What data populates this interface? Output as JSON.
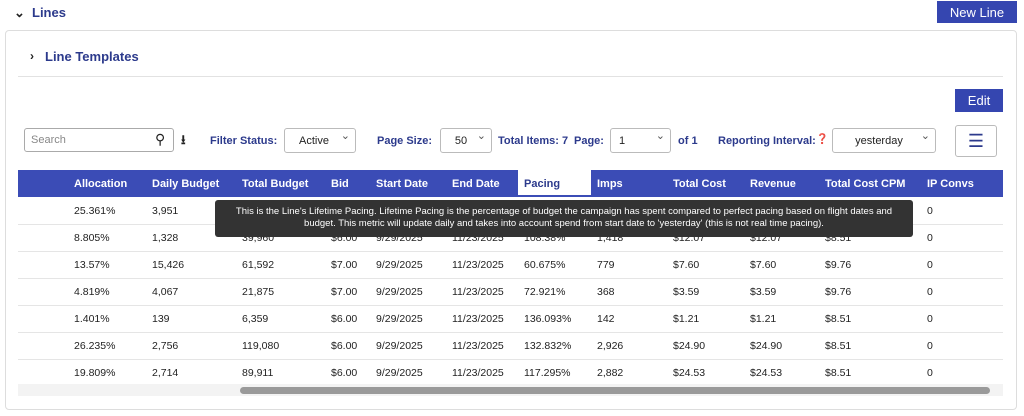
{
  "header": {
    "title": "Lines",
    "new_button": "New Line"
  },
  "templates": {
    "title": "Line Templates"
  },
  "edit_button": "Edit",
  "toolbar": {
    "search_placeholder": "Search",
    "filter_label": "Filter Status:",
    "filter_value": "Active",
    "page_size_label": "Page Size:",
    "page_size_value": "50",
    "total_items": "Total Items: 7",
    "page_label": "Page:",
    "page_value": "1",
    "page_of": "of 1",
    "interval_label": "Reporting Interval:",
    "interval_value": "yesterday"
  },
  "table": {
    "columns": [
      "Allocation",
      "Daily Budget",
      "Total Budget",
      "Bid",
      "Start Date",
      "End Date",
      "Pacing",
      "Imps",
      "Total Cost",
      "Revenue",
      "Total Cost CPM",
      "IP Convs"
    ],
    "rows": [
      [
        "25.361%",
        "3,951",
        null,
        null,
        null,
        null,
        null,
        null,
        null,
        null,
        null,
        "0"
      ],
      [
        "8.805%",
        "1,328",
        "39,960",
        "$6.00",
        "9/29/2025",
        "11/23/2025",
        "108.38%",
        "1,418",
        "$12.07",
        "$12.07",
        "$8.51",
        "0"
      ],
      [
        "13.57%",
        "15,426",
        "61,592",
        "$7.00",
        "9/29/2025",
        "11/23/2025",
        "60.675%",
        "779",
        "$7.60",
        "$7.60",
        "$9.76",
        "0"
      ],
      [
        "4.819%",
        "4,067",
        "21,875",
        "$7.00",
        "9/29/2025",
        "11/23/2025",
        "72.921%",
        "368",
        "$3.59",
        "$3.59",
        "$9.76",
        "0"
      ],
      [
        "1.401%",
        "139",
        "6,359",
        "$6.00",
        "9/29/2025",
        "11/23/2025",
        "136.093%",
        "142",
        "$1.21",
        "$1.21",
        "$8.51",
        "0"
      ],
      [
        "26.235%",
        "2,756",
        "119,080",
        "$6.00",
        "9/29/2025",
        "11/23/2025",
        "132.832%",
        "2,926",
        "$24.90",
        "$24.90",
        "$8.51",
        "0"
      ],
      [
        "19.809%",
        "2,714",
        "89,911",
        "$6.00",
        "9/29/2025",
        "11/23/2025",
        "117.295%",
        "2,882",
        "$24.53",
        "$24.53",
        "$8.51",
        "0"
      ]
    ]
  },
  "tooltip": "This is the Line's Lifetime Pacing. Lifetime Pacing is the percentage of budget the campaign has spent compared to perfect pacing based on flight dates and budget. This metric will update daily and takes into account spend from start date to 'yesterday' (this is not real time pacing)."
}
